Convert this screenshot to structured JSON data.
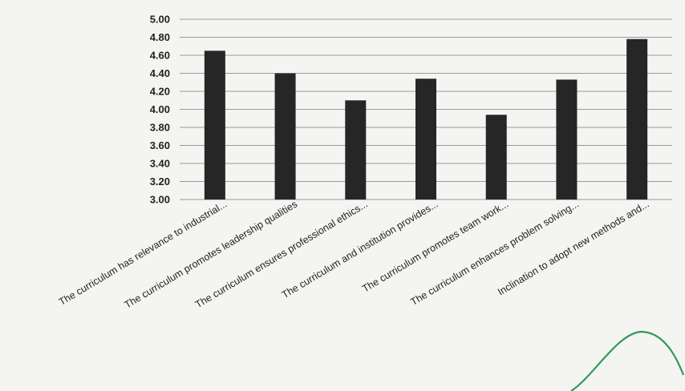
{
  "chart_data": {
    "type": "bar",
    "title": "",
    "xlabel": "",
    "ylabel": "",
    "categories": [
      "The curriculum has relevance to industrial...",
      "The curriculum promotes leadership qualities",
      "The curriculum ensures professional ethics...",
      "The curriculum and institution provides...",
      "The curriculum promotes team work...",
      "The curriculum enhances problem solving...",
      "Inclination to adopt new methods and..."
    ],
    "values": [
      4.65,
      4.4,
      4.1,
      4.34,
      3.94,
      4.33,
      4.78
    ],
    "ylim": [
      3.0,
      5.0
    ],
    "yticks": [
      "5.00",
      "4.80",
      "4.60",
      "4.40",
      "4.20",
      "4.00",
      "3.80",
      "3.60",
      "3.40",
      "3.20",
      "3.00"
    ],
    "grid": true,
    "legend": "none"
  },
  "colors": {
    "bar": "#262626",
    "grid": "#9a9a9a",
    "background": "#f4f4f2",
    "annotation": "#2e9a57"
  }
}
